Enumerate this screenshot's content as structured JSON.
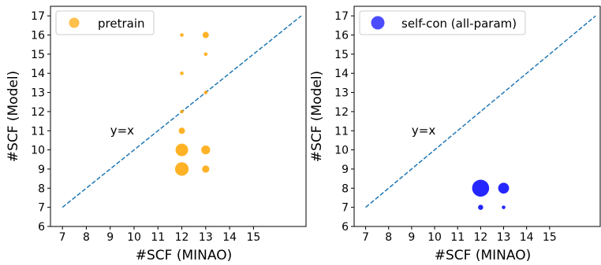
{
  "chart_data": [
    {
      "type": "scatter",
      "xlabel": "#SCF (MINAO)",
      "ylabel": "#SCF (Model)",
      "xlim": [
        6.5,
        17.2
      ],
      "ylim": [
        6,
        17.5
      ],
      "xticks": [
        7,
        8,
        9,
        10,
        11,
        12,
        13,
        14,
        15
      ],
      "yticks": [
        6,
        7,
        8,
        9,
        10,
        11,
        12,
        13,
        14,
        15,
        16,
        17
      ],
      "legend": {
        "label": "pretrain",
        "placement": "top-left"
      },
      "color": "#ffa500",
      "annotation": {
        "text": "y=x",
        "x": 9,
        "y": 10.8
      },
      "reference_line": {
        "x": [
          7,
          17
        ],
        "y": [
          7,
          17
        ],
        "color": "#1f77b4",
        "style": "dashed"
      },
      "points": [
        {
          "x": 12,
          "y": 16,
          "weight": 1
        },
        {
          "x": 13,
          "y": 16,
          "weight": 3
        },
        {
          "x": 13,
          "y": 15,
          "weight": 1
        },
        {
          "x": 12,
          "y": 14,
          "weight": 1
        },
        {
          "x": 13,
          "y": 13,
          "weight": 1
        },
        {
          "x": 12,
          "y": 12,
          "weight": 1
        },
        {
          "x": 12,
          "y": 11,
          "weight": 3
        },
        {
          "x": 12,
          "y": 10,
          "weight": 12
        },
        {
          "x": 13,
          "y": 10,
          "weight": 6
        },
        {
          "x": 12,
          "y": 9,
          "weight": 14
        },
        {
          "x": 13,
          "y": 9,
          "weight": 4
        }
      ]
    },
    {
      "type": "scatter",
      "xlabel": "#SCF (MINAO)",
      "ylabel": "#SCF (Model)",
      "xlim": [
        6.5,
        17.2
      ],
      "ylim": [
        6,
        17.5
      ],
      "xticks": [
        7,
        8,
        9,
        10,
        11,
        12,
        13,
        14,
        15
      ],
      "yticks": [
        6,
        7,
        8,
        9,
        10,
        11,
        12,
        13,
        14,
        15,
        16,
        17
      ],
      "legend": {
        "label": "self-con (all-param)",
        "placement": "top-left"
      },
      "color": "#0000ff",
      "annotation": {
        "text": "y=x",
        "x": 9,
        "y": 10.8
      },
      "reference_line": {
        "x": [
          7,
          17
        ],
        "y": [
          7,
          17
        ],
        "color": "#1f77b4",
        "style": "dashed"
      },
      "points": [
        {
          "x": 12,
          "y": 8,
          "weight": 22
        },
        {
          "x": 13,
          "y": 8,
          "weight": 9
        },
        {
          "x": 12,
          "y": 7,
          "weight": 2
        },
        {
          "x": 13,
          "y": 7,
          "weight": 1
        }
      ]
    }
  ]
}
